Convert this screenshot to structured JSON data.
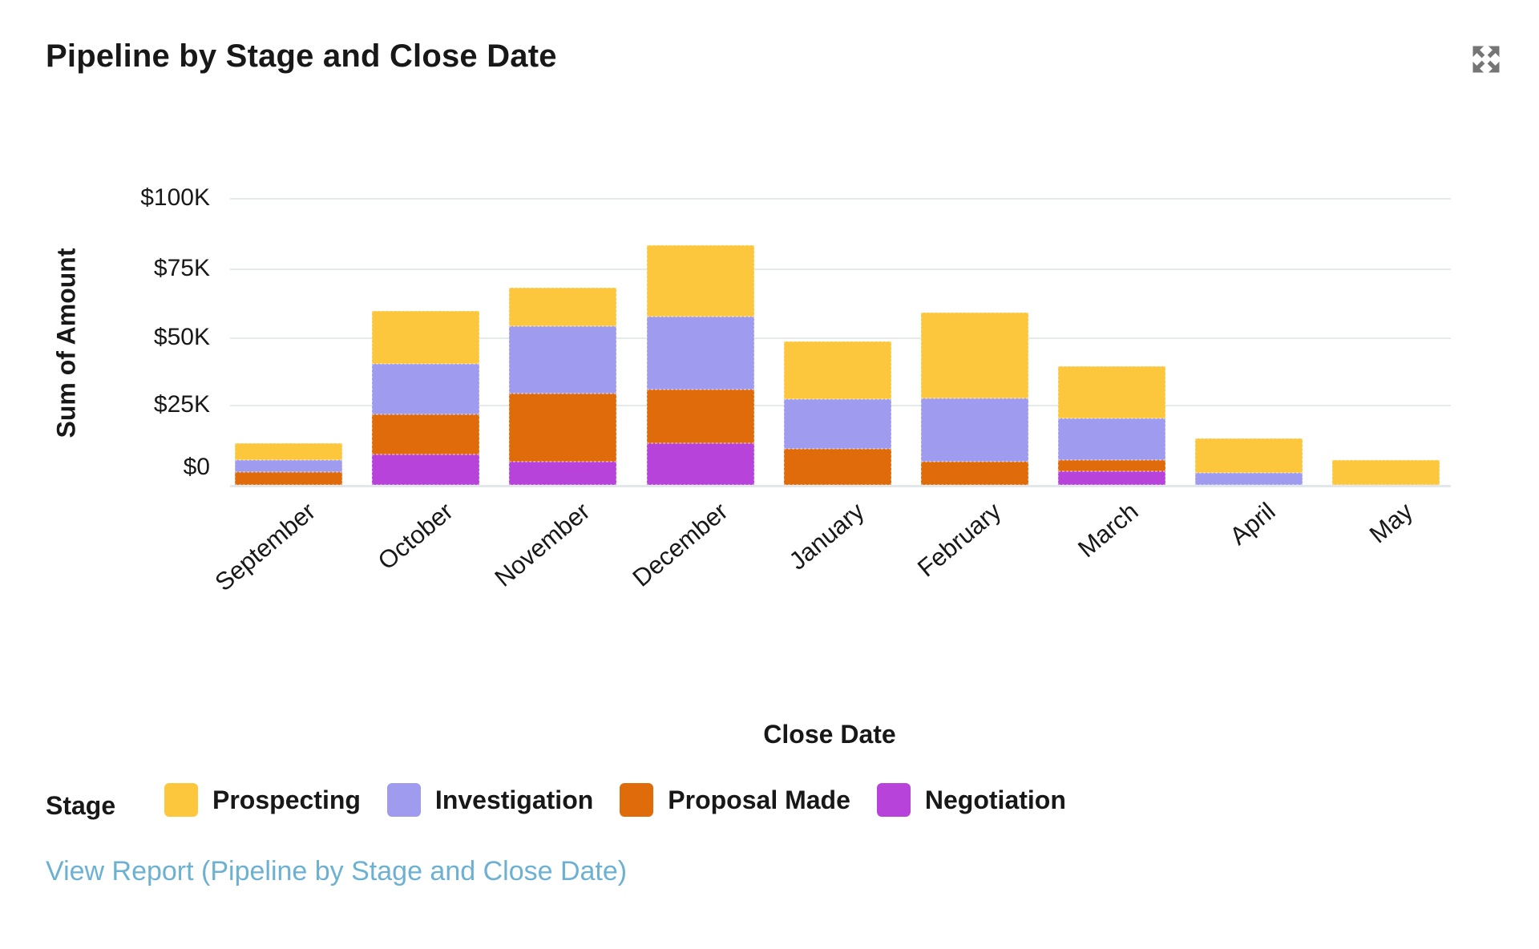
{
  "header": {
    "title": "Pipeline by Stage and Close Date",
    "expand_icon": "expand-icon"
  },
  "chart_data": {
    "type": "bar",
    "stacked": true,
    "title": "Pipeline by Stage and Close Date",
    "categories": [
      "September",
      "October",
      "November",
      "December",
      "January",
      "February",
      "March",
      "April",
      "May"
    ],
    "series": [
      {
        "name": "Prospecting",
        "color": "#FCC63D",
        "values": [
          6,
          19,
          14,
          26,
          21,
          31,
          19,
          12.5,
          9
        ]
      },
      {
        "name": "Investigation",
        "color": "#9F9BEF",
        "values": [
          4.5,
          18.5,
          24.5,
          26.5,
          18,
          23,
          15,
          4.5,
          0
        ]
      },
      {
        "name": "Proposal Made",
        "color": "#E06B0B",
        "values": [
          4.5,
          14.5,
          24.5,
          19.5,
          13,
          8.5,
          4,
          0,
          0
        ]
      },
      {
        "name": "Negotiation",
        "color": "#B843DA",
        "values": [
          0,
          11,
          8.5,
          15,
          0,
          0,
          5,
          0,
          0
        ]
      }
    ],
    "stack_order_bottom_to_top": [
      "Negotiation",
      "Proposal Made",
      "Investigation",
      "Prospecting"
    ],
    "values_unit": "USD thousands",
    "xlabel": "Close Date",
    "ylabel": "Sum of Amount",
    "y_ticks": [
      "$100K",
      "$75K",
      "$50K",
      "$25K",
      "$0"
    ],
    "ylim": [
      0,
      100
    ],
    "grid": "horizontal",
    "legend_title": "Stage",
    "legend_position": "bottom"
  },
  "footer": {
    "view_report_label": "View Report (Pipeline by Stage and Close Date)"
  },
  "colors": {
    "background": "#FFFFFF",
    "text": "#181818",
    "gridline": "#E5EAEB",
    "axis_line": "#E2E8E9",
    "link": "#6CB1D2",
    "icon": "#757575"
  }
}
